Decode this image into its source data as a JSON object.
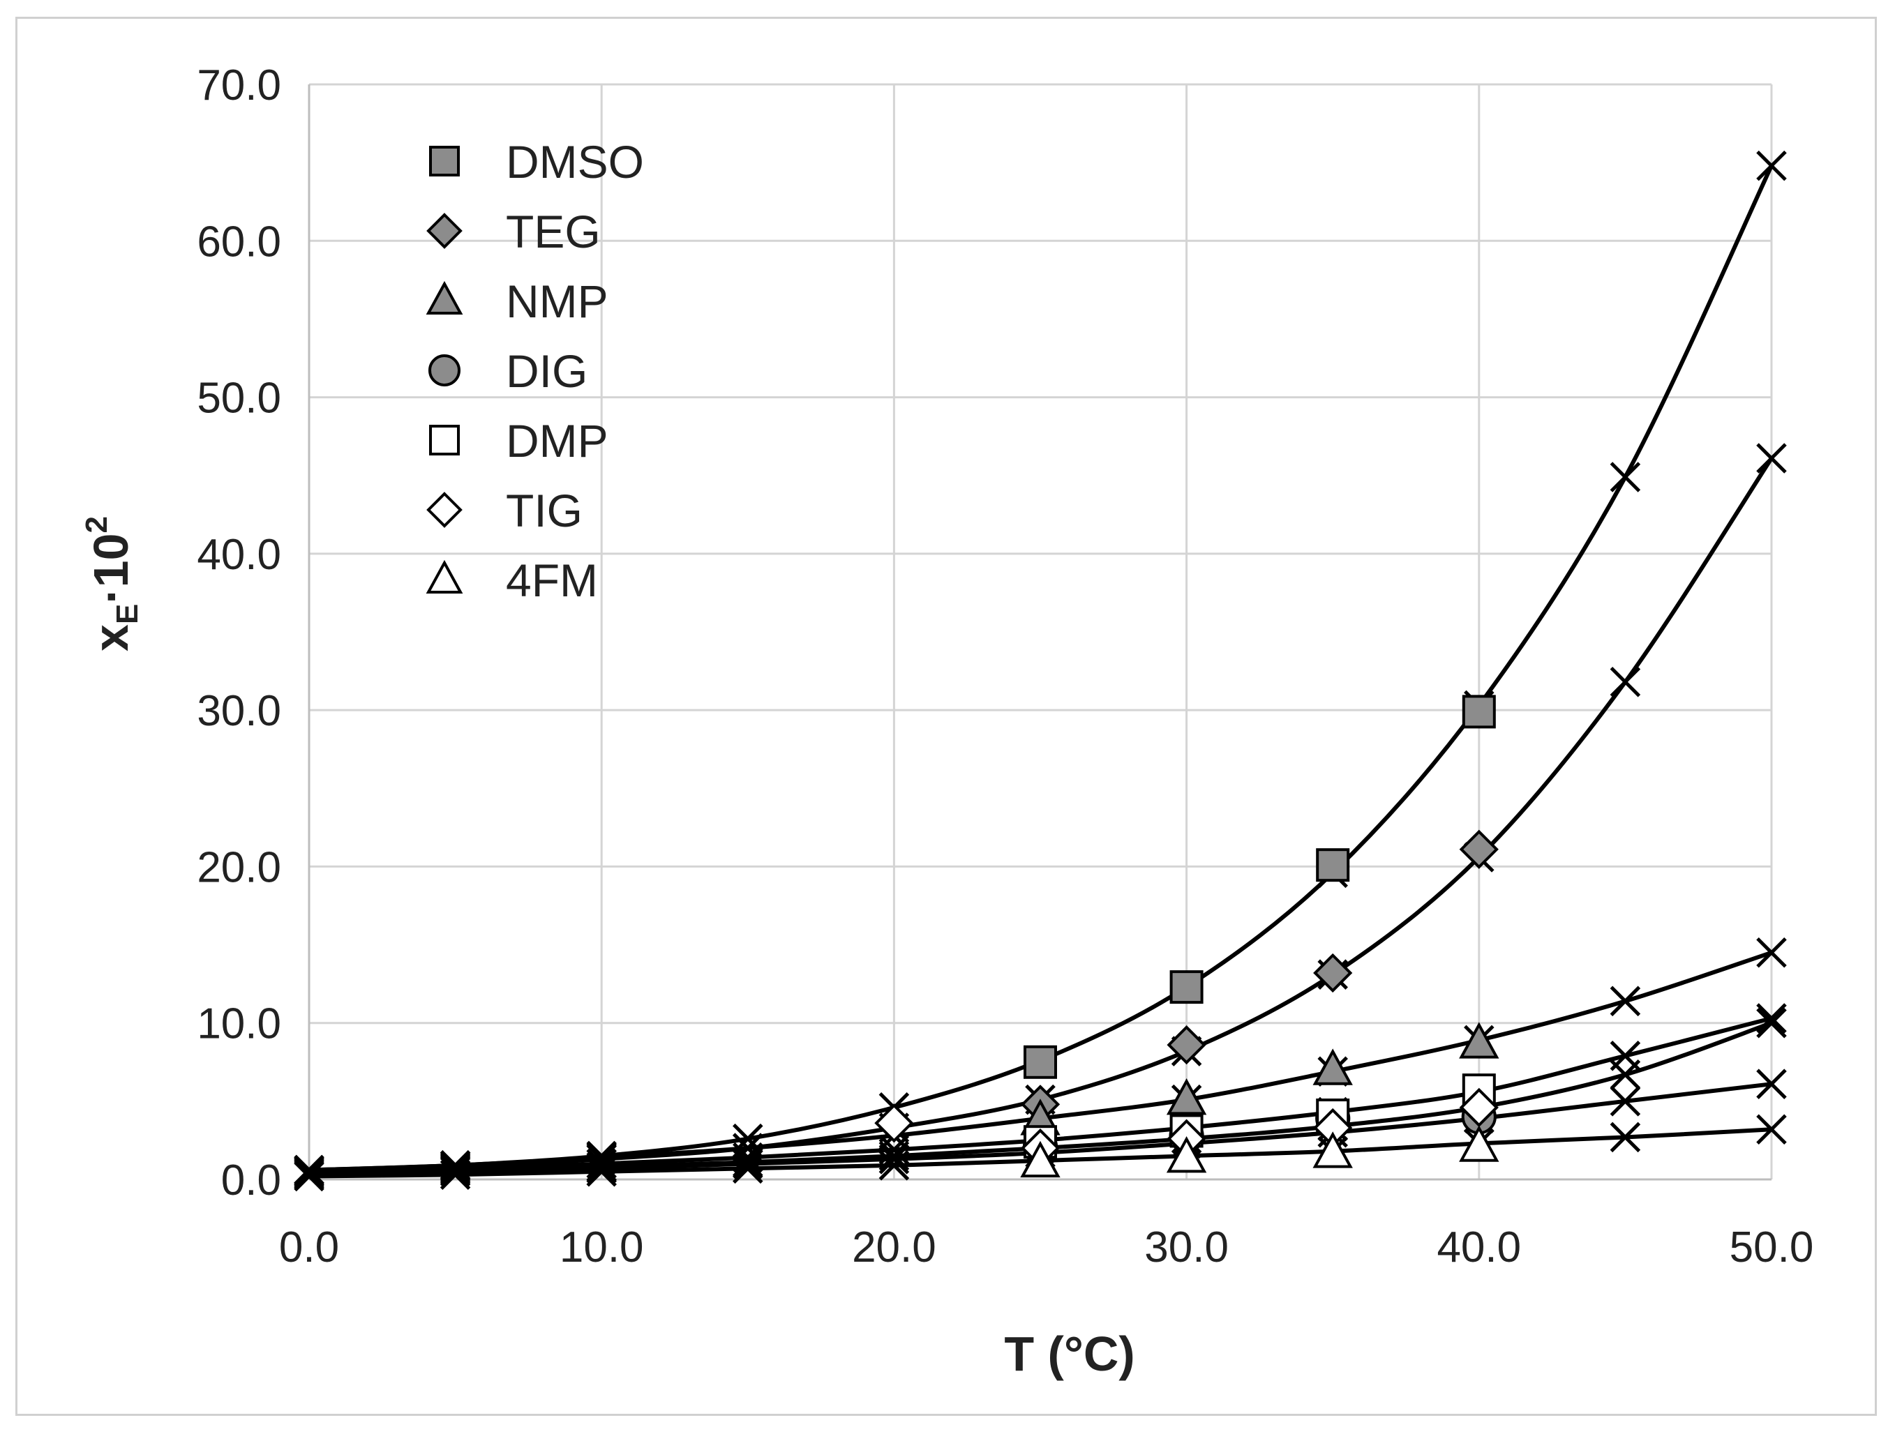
{
  "chart_data": {
    "type": "scatter",
    "xlabel": "T (°C)",
    "ylabel": "x_E·10^2",
    "ylabel_parts": {
      "base": "x",
      "sub": "E",
      "mid": "·10",
      "sup": "2"
    },
    "xlim": [
      0,
      50
    ],
    "ylim": [
      0,
      70
    ],
    "x_ticks": [
      0,
      10,
      20,
      30,
      40,
      50
    ],
    "y_ticks": [
      0,
      10,
      20,
      30,
      40,
      50,
      60,
      70
    ],
    "x_tick_labels": [
      "0.0",
      "10.0",
      "20.0",
      "30.0",
      "40.0",
      "50.0"
    ],
    "y_tick_labels": [
      "0.0",
      "10.0",
      "20.0",
      "30.0",
      "40.0",
      "50.0",
      "60.0",
      "70.0"
    ],
    "grid": true,
    "legend_position": "top-left",
    "series": [
      {
        "name": "DMSO",
        "marker": "square",
        "fill": "#8c8c8c",
        "x": [
          25,
          30,
          35,
          40
        ],
        "y": [
          7.5,
          12.3,
          20.1,
          29.9
        ]
      },
      {
        "name": "TEG",
        "marker": "diamond",
        "fill": "#8c8c8c",
        "x": [
          25,
          30,
          35,
          40
        ],
        "y": [
          4.8,
          8.6,
          13.2,
          21.1
        ]
      },
      {
        "name": "NMP",
        "marker": "triangle",
        "fill": "#8c8c8c",
        "x": [
          25,
          30,
          35,
          40
        ],
        "y": [
          3.8,
          5.1,
          7.0,
          8.7
        ]
      },
      {
        "name": "DIG",
        "marker": "circle",
        "fill": "#8c8c8c",
        "x": [
          25,
          30,
          35,
          40
        ],
        "y": [
          2.1,
          2.8,
          3.9,
          4.0
        ]
      },
      {
        "name": "DMP",
        "marker": "square",
        "fill": "#ffffff",
        "x": [
          25,
          30,
          35,
          40
        ],
        "y": [
          2.4,
          3.1,
          4.1,
          5.7
        ]
      },
      {
        "name": "TIG",
        "marker": "diamond",
        "fill": "#ffffff",
        "x": [
          20,
          25,
          30,
          35,
          40
        ],
        "y": [
          3.6,
          2.0,
          2.6,
          3.3,
          4.6
        ]
      },
      {
        "name": "4FM",
        "marker": "triangle",
        "fill": "#ffffff",
        "x": [
          25,
          30,
          35,
          40
        ],
        "y": [
          1.1,
          1.4,
          1.7,
          2.1
        ]
      }
    ],
    "fit_curves": [
      {
        "x": [
          0,
          5,
          10,
          15,
          20,
          25,
          30,
          35,
          40,
          45,
          50
        ],
        "y": [
          0.6,
          0.9,
          1.5,
          2.6,
          4.6,
          7.6,
          12.3,
          19.6,
          30.3,
          44.9,
          64.8
        ]
      },
      {
        "x": [
          0,
          5,
          10,
          15,
          20,
          25,
          30,
          35,
          40,
          45,
          50
        ],
        "y": [
          0.5,
          0.8,
          1.3,
          2.0,
          3.3,
          5.1,
          8.2,
          13.1,
          20.6,
          31.8,
          46.1
        ]
      },
      {
        "x": [
          0,
          5,
          10,
          15,
          20,
          25,
          30,
          35,
          40,
          45,
          50
        ],
        "y": [
          0.6,
          0.9,
          1.4,
          2.0,
          2.8,
          3.9,
          5.1,
          6.9,
          8.9,
          11.4,
          14.5
        ]
      },
      {
        "x": [
          0,
          5,
          10,
          15,
          20,
          25,
          30,
          35,
          40,
          45,
          50
        ],
        "y": [
          0.5,
          0.7,
          1.0,
          1.4,
          1.9,
          2.5,
          3.3,
          4.3,
          5.6,
          7.9,
          10.3
        ]
      },
      {
        "x": [
          0,
          5,
          10,
          15,
          20,
          25,
          30,
          35,
          40,
          45,
          50
        ],
        "y": [
          0.4,
          0.6,
          0.8,
          1.1,
          1.5,
          2.0,
          2.6,
          3.4,
          4.6,
          6.7,
          10.0
        ]
      },
      {
        "x": [
          0,
          5,
          10,
          15,
          20,
          25,
          30,
          35,
          40,
          45,
          50
        ],
        "y": [
          0.3,
          0.5,
          0.7,
          1.0,
          1.3,
          1.7,
          2.3,
          3.0,
          3.9,
          5.0,
          6.1
        ]
      },
      {
        "x": [
          0,
          5,
          10,
          15,
          20,
          25,
          30,
          35,
          40,
          45,
          50
        ],
        "y": [
          0.2,
          0.3,
          0.5,
          0.7,
          0.9,
          1.2,
          1.5,
          1.8,
          2.3,
          2.7,
          3.2
        ]
      }
    ]
  }
}
